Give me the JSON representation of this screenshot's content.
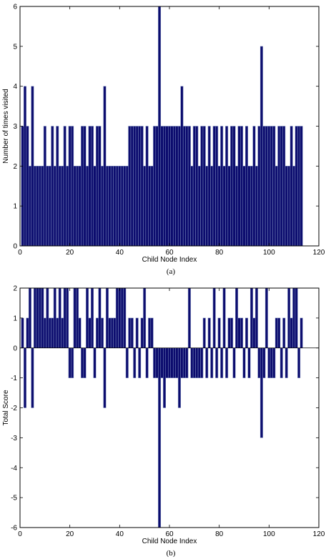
{
  "chart_data": [
    {
      "type": "bar",
      "caption": "(a)",
      "xlabel": "Child Node Index",
      "ylabel": "Number of times visited",
      "xlim": [
        0,
        120
      ],
      "ylim": [
        0,
        6
      ],
      "xticks": [
        "0",
        "20",
        "40",
        "60",
        "80",
        "100",
        "120"
      ],
      "yticks": [
        "0",
        "1",
        "2",
        "3",
        "4",
        "5",
        "6"
      ],
      "bar_color": "#0c0c6e",
      "bar_edge_color": "#7f8fbf",
      "x": [
        1,
        2,
        3,
        4,
        5,
        6,
        7,
        8,
        9,
        10,
        11,
        12,
        13,
        14,
        15,
        16,
        17,
        18,
        19,
        20,
        21,
        22,
        23,
        24,
        25,
        26,
        27,
        28,
        29,
        30,
        31,
        32,
        33,
        34,
        35,
        36,
        37,
        38,
        39,
        40,
        41,
        42,
        43,
        44,
        45,
        46,
        47,
        48,
        49,
        50,
        51,
        52,
        53,
        54,
        55,
        56,
        57,
        58,
        59,
        60,
        61,
        62,
        63,
        64,
        65,
        66,
        67,
        68,
        69,
        70,
        71,
        72,
        73,
        74,
        75,
        76,
        77,
        78,
        79,
        80,
        81,
        82,
        83,
        84,
        85,
        86,
        87,
        88,
        89,
        90,
        91,
        92,
        93,
        94,
        95,
        96,
        97,
        98,
        99,
        100,
        101,
        102,
        103,
        104,
        105,
        106,
        107,
        108,
        109,
        110,
        111,
        112,
        113
      ],
      "values": [
        3,
        4,
        3,
        2,
        4,
        2,
        2,
        2,
        2,
        3,
        2,
        2,
        3,
        2,
        3,
        2,
        2,
        3,
        2,
        3,
        3,
        2,
        2,
        2,
        3,
        3,
        2,
        3,
        3,
        2,
        3,
        3,
        2,
        4,
        2,
        2,
        2,
        2,
        2,
        2,
        2,
        2,
        2,
        3,
        3,
        3,
        3,
        3,
        3,
        2,
        3,
        2,
        2,
        3,
        3,
        6,
        3,
        3,
        3,
        3,
        3,
        3,
        3,
        3,
        4,
        3,
        3,
        3,
        2,
        3,
        3,
        2,
        3,
        3,
        2,
        3,
        2,
        3,
        3,
        2,
        3,
        2,
        3,
        2,
        3,
        3,
        2,
        3,
        3,
        2,
        3,
        2,
        2,
        3,
        2,
        3,
        5,
        3,
        3,
        3,
        3,
        3,
        2,
        3,
        3,
        3,
        2,
        2,
        3,
        2,
        3,
        3,
        3
      ]
    },
    {
      "type": "bar",
      "caption": "(b)",
      "xlabel": "Child Node Index",
      "ylabel": "Total Score",
      "xlim": [
        0,
        120
      ],
      "ylim": [
        -6,
        2
      ],
      "xticks": [
        "0",
        "20",
        "40",
        "60",
        "80",
        "100",
        "120"
      ],
      "yticks": [
        "-6",
        "-5",
        "-4",
        "-3",
        "-2",
        "-1",
        "0",
        "1",
        "2"
      ],
      "bar_color": "#0c0c6e",
      "bar_edge_color": "#7f8fbf",
      "x": [
        1,
        2,
        3,
        4,
        5,
        6,
        7,
        8,
        9,
        10,
        11,
        12,
        13,
        14,
        15,
        16,
        17,
        18,
        19,
        20,
        21,
        22,
        23,
        24,
        25,
        26,
        27,
        28,
        29,
        30,
        31,
        32,
        33,
        34,
        35,
        36,
        37,
        38,
        39,
        40,
        41,
        42,
        43,
        44,
        45,
        46,
        47,
        48,
        49,
        50,
        51,
        52,
        53,
        54,
        55,
        56,
        57,
        58,
        59,
        60,
        61,
        62,
        63,
        64,
        65,
        66,
        67,
        68,
        69,
        70,
        71,
        72,
        73,
        74,
        75,
        76,
        77,
        78,
        79,
        80,
        81,
        82,
        83,
        84,
        85,
        86,
        87,
        88,
        89,
        90,
        91,
        92,
        93,
        94,
        95,
        96,
        97,
        98,
        99,
        100,
        101,
        102,
        103,
        104,
        105,
        106,
        107,
        108,
        109,
        110,
        111,
        112,
        113
      ],
      "values": [
        1,
        -2,
        1,
        2,
        -2,
        2,
        2,
        2,
        2,
        1,
        2,
        1,
        1,
        2,
        1,
        2,
        1,
        2,
        2,
        -1,
        -1,
        2,
        2,
        1,
        -1,
        -1,
        2,
        1,
        2,
        -1,
        1,
        2,
        1,
        -2,
        2,
        1,
        1,
        1,
        2,
        2,
        2,
        2,
        -1,
        1,
        1,
        -1,
        1,
        -1,
        1,
        2,
        -1,
        1,
        1,
        -1,
        -1,
        -6,
        -1,
        -2,
        -1,
        -1,
        -1,
        -1,
        -1,
        -2,
        -1,
        -1,
        -1,
        2,
        -1,
        -1,
        -1,
        -1,
        -1,
        1,
        -1,
        1,
        -1,
        2,
        -1,
        1,
        -1,
        2,
        -1,
        1,
        1,
        -1,
        2,
        1,
        1,
        -1,
        1,
        -1,
        2,
        1,
        2,
        -1,
        -3,
        -1,
        2,
        -1,
        -1,
        -1,
        1,
        1,
        -1,
        1,
        -1,
        2,
        1,
        2,
        2,
        -1,
        1
      ]
    }
  ]
}
